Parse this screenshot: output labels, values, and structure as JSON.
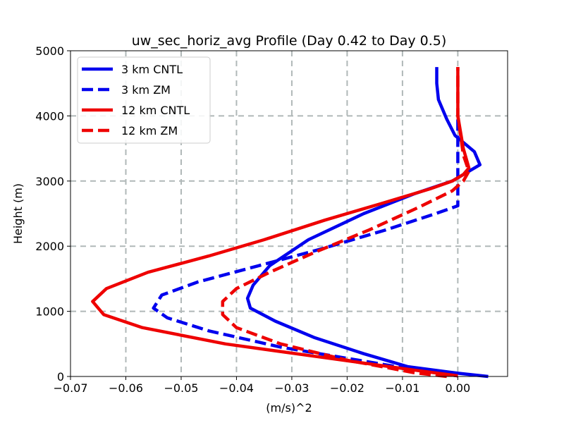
{
  "chart_data": {
    "type": "line",
    "title": "uw_sec_horiz_avg Profile (Day 0.42 to Day 0.5)",
    "xlabel": "(m/s)^2",
    "ylabel": "Height (m)",
    "xlim": [
      -0.07,
      0.009
    ],
    "ylim": [
      0,
      5000
    ],
    "xticks": [
      -0.07,
      -0.06,
      -0.05,
      -0.04,
      -0.03,
      -0.02,
      -0.01,
      0.0
    ],
    "xtick_labels": [
      "−0.07",
      "−0.06",
      "−0.05",
      "−0.04",
      "−0.03",
      "−0.02",
      "−0.01",
      "0.00"
    ],
    "yticks": [
      0,
      1000,
      2000,
      3000,
      4000,
      5000
    ],
    "ytick_labels": [
      "0",
      "1000",
      "2000",
      "3000",
      "4000",
      "5000"
    ],
    "grid": true,
    "legend_position": "upper-left",
    "series": [
      {
        "name": "3 km CNTL",
        "color": "#0000ee",
        "dash": "solid",
        "points": [
          [
            0.0055,
            0
          ],
          [
            0.0,
            50
          ],
          [
            -0.009,
            150
          ],
          [
            -0.017,
            350
          ],
          [
            -0.026,
            600
          ],
          [
            -0.033,
            850
          ],
          [
            -0.0375,
            1050
          ],
          [
            -0.038,
            1200
          ],
          [
            -0.037,
            1400
          ],
          [
            -0.034,
            1700
          ],
          [
            -0.027,
            2100
          ],
          [
            -0.017,
            2500
          ],
          [
            -0.008,
            2800
          ],
          [
            -0.001,
            3000
          ],
          [
            0.004,
            3250
          ],
          [
            0.003,
            3450
          ],
          [
            -0.0005,
            3700
          ],
          [
            -0.002,
            3950
          ],
          [
            -0.0035,
            4250
          ],
          [
            -0.0038,
            4500
          ],
          [
            -0.0038,
            4750
          ]
        ]
      },
      {
        "name": "3 km ZM",
        "color": "#0000ee",
        "dash": "dashed",
        "points": [
          [
            0.0,
            10
          ],
          [
            -0.006,
            80
          ],
          [
            -0.018,
            250
          ],
          [
            -0.032,
            450
          ],
          [
            -0.045,
            700
          ],
          [
            -0.0525,
            900
          ],
          [
            -0.055,
            1050
          ],
          [
            -0.0535,
            1250
          ],
          [
            -0.047,
            1450
          ],
          [
            -0.036,
            1700
          ],
          [
            -0.025,
            1950
          ],
          [
            -0.013,
            2250
          ],
          [
            -0.004,
            2500
          ],
          [
            0.0,
            2620
          ],
          [
            0.0,
            2700
          ],
          [
            0.0,
            2800
          ],
          [
            0.0,
            3100
          ],
          [
            0.0,
            4000
          ]
        ]
      },
      {
        "name": "12 km CNTL",
        "color": "#ee0000",
        "dash": "solid",
        "points": [
          [
            0.0,
            10
          ],
          [
            -0.008,
            100
          ],
          [
            -0.025,
            300
          ],
          [
            -0.042,
            500
          ],
          [
            -0.057,
            750
          ],
          [
            -0.064,
            950
          ],
          [
            -0.066,
            1150
          ],
          [
            -0.0635,
            1350
          ],
          [
            -0.056,
            1600
          ],
          [
            -0.045,
            1850
          ],
          [
            -0.035,
            2100
          ],
          [
            -0.024,
            2400
          ],
          [
            -0.014,
            2650
          ],
          [
            -0.005,
            2880
          ],
          [
            -0.001,
            3000
          ],
          [
            0.001,
            3100
          ],
          [
            0.002,
            3200
          ],
          [
            0.001,
            3500
          ],
          [
            0.0,
            4000
          ],
          [
            0.0,
            4750
          ]
        ]
      },
      {
        "name": "12 km ZM",
        "color": "#ee0000",
        "dash": "dashed",
        "points": [
          [
            -0.002,
            0
          ],
          [
            -0.008,
            60
          ],
          [
            -0.02,
            250
          ],
          [
            -0.032,
            500
          ],
          [
            -0.04,
            750
          ],
          [
            -0.0425,
            950
          ],
          [
            -0.0425,
            1150
          ],
          [
            -0.04,
            1350
          ],
          [
            -0.034,
            1600
          ],
          [
            -0.026,
            1900
          ],
          [
            -0.016,
            2250
          ],
          [
            -0.007,
            2600
          ],
          [
            -0.001,
            2850
          ],
          [
            0.001,
            3000
          ],
          [
            0.002,
            3150
          ],
          [
            0.001,
            3400
          ],
          [
            0.0,
            4000
          ],
          [
            0.0,
            4750
          ]
        ]
      }
    ]
  }
}
